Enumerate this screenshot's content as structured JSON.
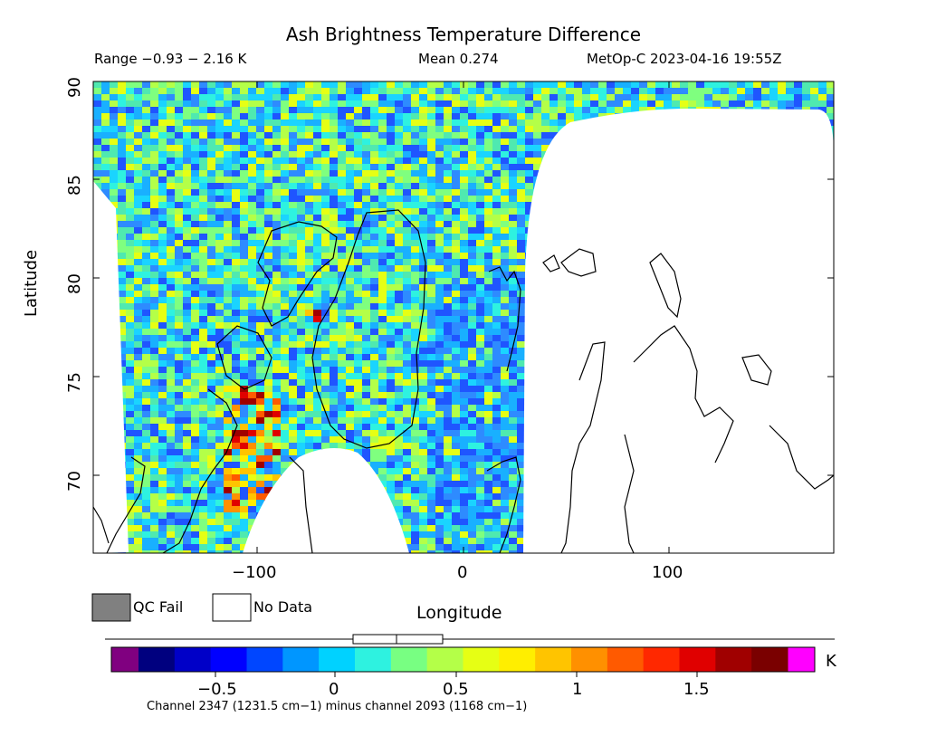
{
  "header": {
    "title": "Ash Brightness Temperature Difference",
    "range_text": "Range −0.93 − 2.16 K",
    "mean_text": "Mean 0.274",
    "satellite_time": "MetOp-C 2023-04-16 19:55Z"
  },
  "axes": {
    "ylabel": "Latitude",
    "xlabel": "Longitude",
    "yticks": [
      "90",
      "85",
      "80",
      "75",
      "70"
    ],
    "xticks": [
      "−100",
      "0",
      "100"
    ]
  },
  "legend": {
    "qc_fail": "QC Fail",
    "no_data": "No Data",
    "qc_fail_color": "#808080",
    "no_data_color": "#ffffff"
  },
  "colorbar": {
    "unit": "K",
    "labels": [
      "−0.5",
      "0",
      "0.5",
      "1",
      "1.5"
    ],
    "low_color": "#800080",
    "high_color": "#ff00ff",
    "range": [
      -0.93,
      2.16
    ],
    "colors": [
      "#00007f",
      "#0000c8",
      "#0000ff",
      "#0046ff",
      "#0096ff",
      "#00d2ff",
      "#2ef2e0",
      "#78ff82",
      "#b4ff48",
      "#e6ff14",
      "#ffee00",
      "#ffc400",
      "#ff9000",
      "#ff5a00",
      "#ff2800",
      "#e00000",
      "#a00000",
      "#7a0000"
    ],
    "box": {
      "q1": 0.15,
      "median": 0.28,
      "q3": 0.4,
      "min": -0.93,
      "max": 2.16
    }
  },
  "footer": {
    "channel_text": "Channel 2347 (1231.5 cm−1) minus channel 2093 (1168 cm−1)"
  },
  "map": {
    "projection": "Cylindrical lat/lon",
    "lon_range": [
      -180,
      180
    ],
    "lat_range": [
      66,
      90
    ],
    "palette": [
      "#1f55ff",
      "#2e8bff",
      "#19b0ff",
      "#1ad4ff",
      "#2ef2e0",
      "#4fe9b0",
      "#7fff7f",
      "#b4ff48",
      "#e6ff14"
    ],
    "hot_palette": [
      "#ffee00",
      "#ffc400",
      "#ff9000",
      "#ff5a00",
      "#e00000",
      "#a00000"
    ]
  }
}
